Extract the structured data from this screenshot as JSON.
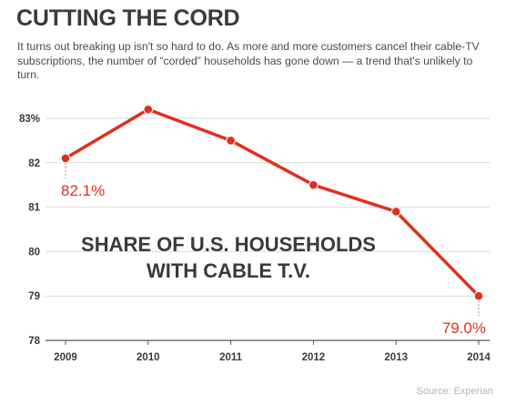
{
  "header": {
    "title": "CUTTING THE CORD",
    "dek": "It turns out breaking up isn't so hard to do. As more and more customers cancel their cable-TV subscriptions, the number of “corded” households has gone down — a trend that's unlikely to turn."
  },
  "colors": {
    "line": "#e0301e",
    "grid": "#d9d9d9",
    "text": "#3a3a3a"
  },
  "chart_data": {
    "type": "line",
    "title": "SHARE OF U.S. HOUSEHOLDS WITH CABLE T.V.",
    "title_lines": [
      "SHARE OF U.S. HOUSEHOLDS",
      "WITH CABLE T.V."
    ],
    "x": [
      "2009",
      "2010",
      "2011",
      "2012",
      "2013",
      "2014"
    ],
    "series": [
      {
        "values": [
          82.1,
          83.2,
          82.5,
          81.5,
          80.9,
          79.0
        ]
      }
    ],
    "y_ticks": [
      "83%",
      "82",
      "81",
      "80",
      "79",
      "78"
    ],
    "y_tick_values": [
      83,
      82,
      81,
      80,
      79,
      78
    ],
    "ylim": [
      78,
      83.4
    ],
    "grid": true,
    "annotations": [
      {
        "index": 0,
        "text": "82.1%"
      },
      {
        "index": 5,
        "text": "79.0%"
      }
    ]
  },
  "source": "Source: Experian"
}
